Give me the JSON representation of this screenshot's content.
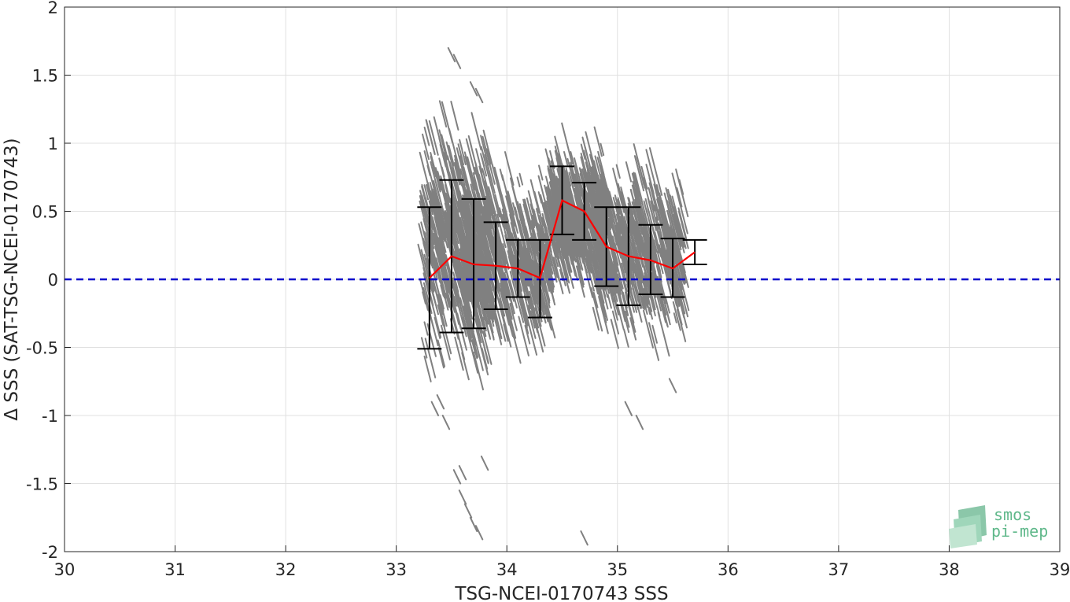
{
  "chart_data": {
    "type": "scatter",
    "title": "",
    "xlabel": "TSG-NCEI-0170743 SSS",
    "ylabel": "Δ SSS (SAT-TSG-NCEI-0170743)",
    "xlim": [
      30,
      39
    ],
    "ylim": [
      -2,
      2
    ],
    "xticks": [
      "30",
      "31",
      "32",
      "33",
      "34",
      "35",
      "36",
      "37",
      "38",
      "39"
    ],
    "yticks": [
      "-2",
      "-1.5",
      "-1",
      "-0.5",
      "0",
      "0.5",
      "1",
      "1.5",
      "2"
    ],
    "grid": true,
    "colors": {
      "scatter": "#808080",
      "mean_line": "#ff0000",
      "zero_line": "#0000cc",
      "error_bars": "#000000"
    },
    "series": [
      {
        "kind": "binned-mean",
        "x": [
          33.3,
          33.5,
          33.7,
          33.9,
          34.1,
          34.3,
          34.5,
          34.7,
          34.9,
          35.1,
          35.3,
          35.5,
          35.7
        ],
        "y": [
          0.01,
          0.17,
          0.11,
          0.1,
          0.08,
          0.01,
          0.58,
          0.5,
          0.24,
          0.17,
          0.14,
          0.08,
          0.2
        ],
        "err_low": [
          -0.51,
          -0.39,
          -0.36,
          -0.22,
          -0.13,
          -0.28,
          0.33,
          0.29,
          -0.05,
          -0.19,
          -0.11,
          -0.13,
          0.11
        ],
        "err_high": [
          0.53,
          0.73,
          0.59,
          0.42,
          0.29,
          0.29,
          0.83,
          0.71,
          0.53,
          0.53,
          0.4,
          0.3,
          0.29
        ]
      },
      {
        "kind": "reference-line",
        "y": 0
      }
    ],
    "scatter_clusters": [
      {
        "x_range": [
          33.25,
          33.85
        ],
        "y_center": 0.25,
        "y_spread": 0.65
      },
      {
        "x_range": [
          33.6,
          34.4
        ],
        "y_center": 0.15,
        "y_spread": 0.45
      },
      {
        "x_range": [
          34.4,
          34.9
        ],
        "y_center": 0.45,
        "y_spread": 0.35
      },
      {
        "x_range": [
          34.8,
          35.6
        ],
        "y_center": 0.2,
        "y_spread": 0.45
      }
    ],
    "scatter_outliers": [
      [
        33.5,
        1.65
      ],
      [
        33.55,
        1.6
      ],
      [
        33.7,
        1.4
      ],
      [
        33.75,
        1.35
      ],
      [
        33.6,
        -1.6
      ],
      [
        33.55,
        -1.45
      ],
      [
        33.6,
        -1.42
      ],
      [
        33.65,
        -1.7
      ],
      [
        33.7,
        -1.8
      ],
      [
        33.8,
        -1.35
      ],
      [
        33.75,
        -1.86
      ],
      [
        34.7,
        -1.9
      ],
      [
        33.35,
        -0.95
      ],
      [
        33.4,
        -0.9
      ],
      [
        33.45,
        -1.05
      ],
      [
        35.2,
        -1.05
      ],
      [
        35.1,
        -0.95
      ],
      [
        35.5,
        -0.78
      ]
    ]
  },
  "logo": {
    "line1": "smos",
    "line2": "pi-mep"
  }
}
